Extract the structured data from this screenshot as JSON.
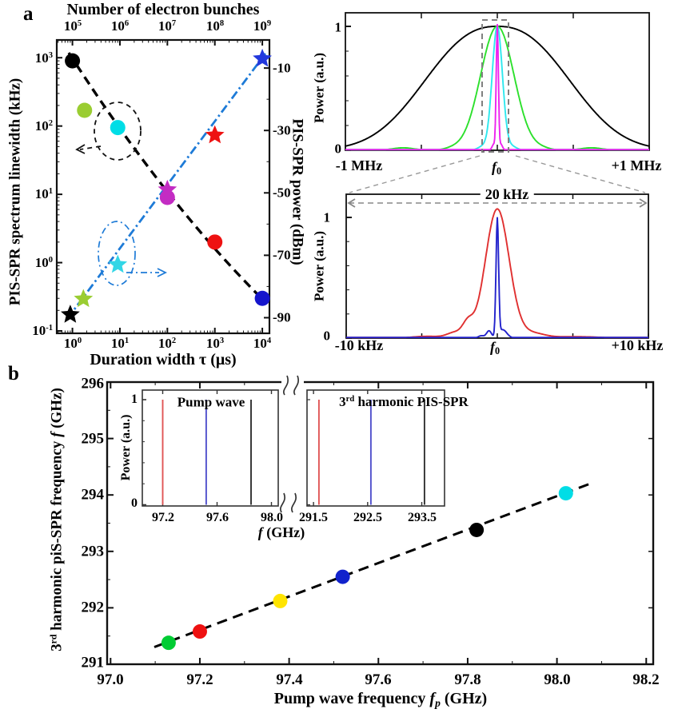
{
  "figure": {
    "panel_a_label": "a",
    "panel_b_label": "b"
  },
  "chart_data": {
    "a_scatter": {
      "type": "scatter",
      "top_axis_label": "Number of electron bunches",
      "top_ticks": [
        {
          "base": "10",
          "exp": "5"
        },
        {
          "base": "10",
          "exp": "6"
        },
        {
          "base": "10",
          "exp": "7"
        },
        {
          "base": "10",
          "exp": "8"
        },
        {
          "base": "10",
          "exp": "9"
        }
      ],
      "xlabel": "Duration width τ (μs)",
      "x_ticks": [
        {
          "base": "10",
          "exp": "0"
        },
        {
          "base": "10",
          "exp": "1"
        },
        {
          "base": "10",
          "exp": "2"
        },
        {
          "base": "10",
          "exp": "3"
        },
        {
          "base": "10",
          "exp": "4"
        }
      ],
      "ylabel_left": "PIS-SPR spectrum linewidth (kHz)",
      "y_ticks_left": [
        {
          "base": "10",
          "exp": "3"
        },
        {
          "base": "10",
          "exp": "2"
        },
        {
          "base": "10",
          "exp": "1"
        },
        {
          "base": "10",
          "exp": "0"
        },
        {
          "base": "10",
          "exp": "-1"
        }
      ],
      "ylabel_right": "PIS-SPR power (dBm)",
      "y_ticks_right": [
        "-10",
        "-30",
        "-50",
        "-70",
        "-90"
      ],
      "xlim_us": [
        0.47,
        14000
      ],
      "ylim_left_khz": [
        0.09,
        1800
      ],
      "ylim_right_dbm": [
        -95,
        -1
      ],
      "series": [
        {
          "name": "spectrum-linewidth",
          "marker": "circle",
          "axis": "left",
          "points": [
            {
              "tau_us": 1,
              "linewidth_khz": 900,
              "color": "#000000"
            },
            {
              "tau_us": 1.8,
              "linewidth_khz": 170,
              "color": "#9acd32"
            },
            {
              "tau_us": 9,
              "linewidth_khz": 95,
              "color": "#00dde6"
            },
            {
              "tau_us": 100,
              "linewidth_khz": 9,
              "color": "#c32cc3"
            },
            {
              "tau_us": 1000,
              "linewidth_khz": 2,
              "color": "#ee1111"
            },
            {
              "tau_us": 10000,
              "linewidth_khz": 0.3,
              "color": "#1515cc"
            }
          ],
          "trend": {
            "style": "dashed",
            "color": "#000000"
          }
        },
        {
          "name": "pis-spr-power",
          "marker": "star",
          "axis": "right",
          "points": [
            {
              "tau_us": 0.9,
              "power_dbm": -89,
              "color": "#000000"
            },
            {
              "tau_us": 1.7,
              "power_dbm": -84,
              "color": "#9acd32"
            },
            {
              "tau_us": 9,
              "power_dbm": -73,
              "color": "#33d6e6"
            },
            {
              "tau_us": 100,
              "power_dbm": -49,
              "color": "#c32cc3"
            },
            {
              "tau_us": 1000,
              "power_dbm": -31.5,
              "color": "#ee1111"
            },
            {
              "tau_us": 10000,
              "power_dbm": -7,
              "color": "#2238dd"
            }
          ],
          "trend": {
            "style": "dash-dot",
            "color": "#1e7bd7"
          }
        }
      ]
    },
    "spectrum_mhz": {
      "type": "line",
      "ylabel": "Power (a.u.)",
      "y_tick_top": "1",
      "y_tick_bottom": "0",
      "x_left_label": "-1 MHz",
      "x_center_label": {
        "f": "f",
        "sub": "0"
      },
      "x_right_label": "+1 MHz",
      "x_range_mhz": [
        -1,
        1
      ],
      "curves": [
        {
          "name": "widest",
          "color": "#000000",
          "peak": 1,
          "sigma": 0.45,
          "exponent": 2.4
        },
        {
          "name": "wide",
          "color": "#2ce02c",
          "peak": 1,
          "sigma": 0.11,
          "sidelobes": [
            {
              "center": -0.62,
              "sigma": 0.07,
              "amp": 0.02
            },
            {
              "center": 0.62,
              "sigma": 0.07,
              "amp": 0.02
            },
            {
              "center": -0.3,
              "sigma": 0.05,
              "amp": 0.012
            },
            {
              "center": 0.3,
              "sigma": 0.05,
              "amp": 0.012
            }
          ]
        },
        {
          "name": "narrow",
          "color": "#2ee8ee",
          "peak": 1,
          "sigma": 0.034,
          "sidelobes": [
            {
              "center": -0.1,
              "sigma": 0.03,
              "amp": 0.028
            },
            {
              "center": 0.1,
              "sigma": 0.03,
              "amp": 0.028
            }
          ]
        },
        {
          "name": "narrowest",
          "color": "#ee22ee",
          "peak": 1,
          "sigma": 0.007,
          "sidelobes": [
            {
              "center": -0.022,
              "sigma": 0.012,
              "amp": 0.05
            },
            {
              "center": 0.022,
              "sigma": 0.012,
              "amp": 0.05
            }
          ]
        }
      ],
      "zoom_box_color": "#808080"
    },
    "spectrum_khz": {
      "type": "line",
      "span_label": "20 kHz",
      "ylabel": "Power (a.u.)",
      "y_tick_top": "1",
      "y_tick_bottom": "0",
      "x_left_label": "-10 kHz",
      "x_center_label": {
        "f": "f",
        "sub": "0"
      },
      "x_right_label": "+10 kHz",
      "x_range_khz": [
        -10,
        10
      ],
      "curves": [
        {
          "name": "broad",
          "color": "#e03030",
          "peak": 1.07,
          "sigma": 0.79,
          "center": 0,
          "sidelobes": [
            {
              "center": -1.95,
              "sigma": 0.35,
              "amp": 0.11
            },
            {
              "center": -2.8,
              "sigma": 0.5,
              "amp": 0.045
            },
            {
              "center": 2.3,
              "sigma": 0.8,
              "amp": 0.04
            },
            {
              "center": -4.6,
              "sigma": 1.0,
              "amp": 0.015
            },
            {
              "center": 5.2,
              "sigma": 1.5,
              "amp": 0.012
            }
          ]
        },
        {
          "name": "narrow",
          "color": "#2222cc",
          "peak": 0.97,
          "sigma": 0.085,
          "center": 0,
          "sidelobes": [
            {
              "center": -0.55,
              "sigma": 0.16,
              "amp": 0.06
            },
            {
              "center": 0.35,
              "sigma": 0.28,
              "amp": 0.07
            },
            {
              "center": -1.05,
              "sigma": 0.2,
              "amp": 0.02
            }
          ]
        }
      ]
    },
    "b_scatter": {
      "type": "scatter",
      "xlabel_parts": {
        "pre": "Pump wave frequency ",
        "f": "f",
        "sub": "p",
        "post": " (GHz)"
      },
      "ylabel_parts": {
        "pre": "3",
        "sup": "rd",
        "mid": " harmonic piS-SPR frequency ",
        "f": "f",
        "post": " (GHz)"
      },
      "x_ticks": [
        "97.0",
        "97.2",
        "97.4",
        "97.6",
        "97.8",
        "98.0",
        "98.2"
      ],
      "y_ticks": [
        "296",
        "295",
        "294",
        "293",
        "292",
        "291"
      ],
      "xlim": [
        97.0,
        98.2
      ],
      "ylim": [
        291,
        296
      ],
      "points": [
        {
          "fp_ghz": 97.13,
          "f_ghz": 291.38,
          "color": "#00cc33"
        },
        {
          "fp_ghz": 97.2,
          "f_ghz": 291.58,
          "color": "#ee1111"
        },
        {
          "fp_ghz": 97.38,
          "f_ghz": 292.12,
          "color": "#ffe400"
        },
        {
          "fp_ghz": 97.52,
          "f_ghz": 292.55,
          "color": "#1122cc"
        },
        {
          "fp_ghz": 97.82,
          "f_ghz": 293.38,
          "color": "#000000"
        },
        {
          "fp_ghz": 98.02,
          "f_ghz": 294.03,
          "color": "#00dde6"
        }
      ],
      "fit_line": {
        "style": "dashed",
        "color": "#000000"
      },
      "inset": {
        "ylabel": "Power (a.u.)",
        "y_tick_top": "1",
        "y_tick_bottom": "0",
        "xlabel_parts": {
          "f": "f",
          "post": " (GHz)"
        },
        "left_panel": {
          "label": "Pump wave",
          "x_ticks": [
            "97.2",
            "97.6",
            "98.0"
          ],
          "xlim": [
            97.05,
            98.05
          ],
          "lines": [
            {
              "f_ghz": 97.2,
              "color": "#e05555"
            },
            {
              "f_ghz": 97.52,
              "color": "#5050cc"
            },
            {
              "f_ghz": 97.85,
              "color": "#303030"
            }
          ]
        },
        "right_panel": {
          "label_parts": {
            "pre": "3",
            "sup": "rd",
            "post": " harmonic PIS-SPR"
          },
          "x_ticks": [
            "291.5",
            "292.5",
            "293.5"
          ],
          "xlim": [
            291.38,
            293.92
          ],
          "lines": [
            {
              "f_ghz": 291.6,
              "color": "#e05555"
            },
            {
              "f_ghz": 292.56,
              "color": "#5050cc"
            },
            {
              "f_ghz": 293.55,
              "color": "#303030"
            }
          ]
        }
      }
    }
  }
}
